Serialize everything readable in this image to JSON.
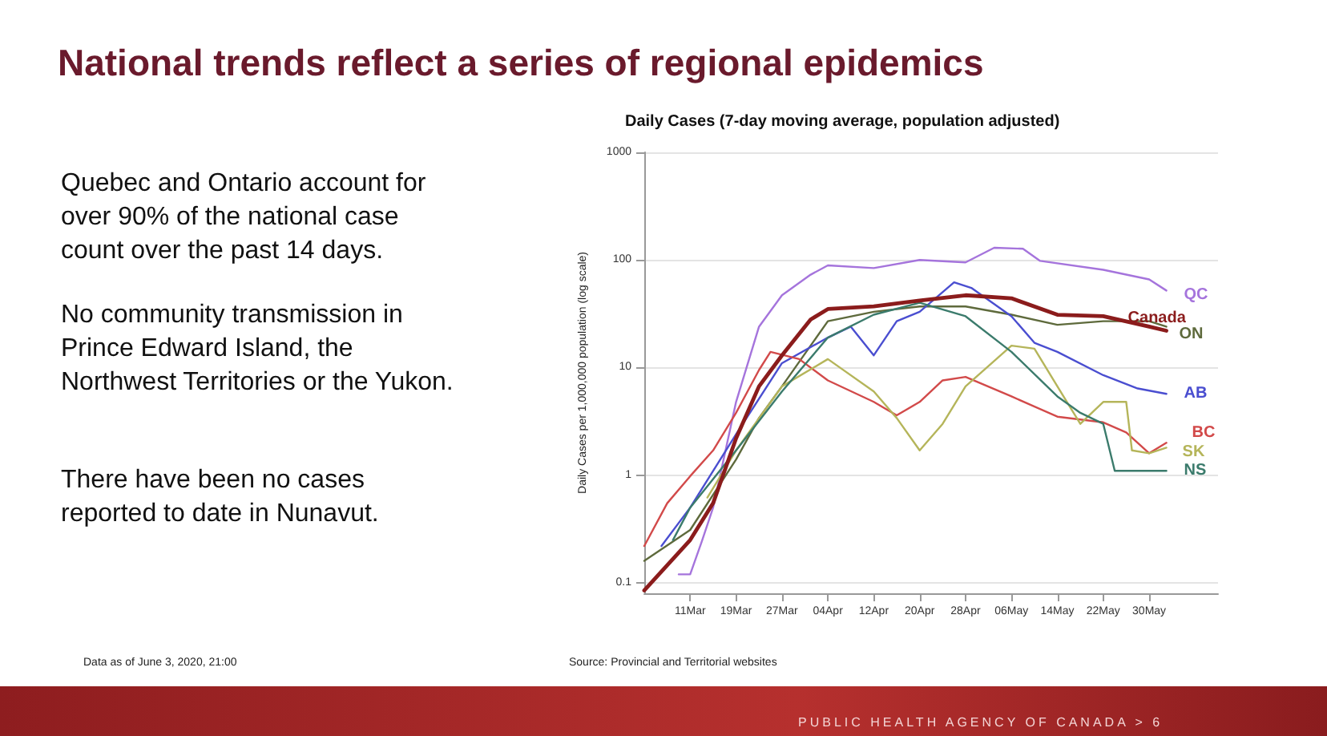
{
  "chart_data": {
    "type": "line",
    "title": "National trends reflect a series of regional epidemics",
    "subtitle": "Daily Cases (7-day moving average, population adjusted)",
    "ylabel": "Daily Cases per 1,000,000 population (log scale)",
    "annotations": [
      "Quebec and Ontario account for over 90% of the national case count over the past 14 days.",
      "No community transmission in Prince Edward Island, the Northwest Territories or the Yukon.",
      "There have been no cases reported to date in Nunavut.",
      "Data as of June 3, 2020, 21:00",
      "Source: Provincial and Territorial websites",
      "PUBLIC HEALTH AGENCY OF CANADA > 6"
    ],
    "log": "y",
    "grid": "y",
    "marker": "none",
    "line_style": "solid",
    "xlim": [
      "2020-03-03",
      "2020-06-11"
    ],
    "xticks": [
      {
        "value": "2020-03-11",
        "label": "11Mar"
      },
      {
        "value": "2020-03-19",
        "label": "19Mar"
      },
      {
        "value": "2020-03-27",
        "label": "27Mar"
      },
      {
        "value": "2020-04-04",
        "label": "04Apr"
      },
      {
        "value": "2020-04-12",
        "label": "12Apr"
      },
      {
        "value": "2020-04-20",
        "label": "20Apr"
      },
      {
        "value": "2020-04-28",
        "label": "28Apr"
      },
      {
        "value": "2020-05-06",
        "label": "06May"
      },
      {
        "value": "2020-05-14",
        "label": "14May"
      },
      {
        "value": "2020-05-22",
        "label": "22May"
      },
      {
        "value": "2020-05-30",
        "label": "30May"
      }
    ],
    "ylim": [
      0.08,
      1000
    ],
    "yticks": [
      0.1,
      1,
      10,
      100,
      1000
    ],
    "series": [
      {
        "name": "QC",
        "color": "#a574dc",
        "x": [
          "2020-03-09",
          "2020-03-11",
          "2020-03-13",
          "2020-03-15",
          "2020-03-19",
          "2020-03-23",
          "2020-03-27",
          "2020-04-01",
          "2020-04-04",
          "2020-04-12",
          "2020-04-20",
          "2020-04-28",
          "2020-05-03",
          "2020-05-08",
          "2020-05-11",
          "2020-05-22",
          "2020-05-30",
          "2020-06-02"
        ],
        "values": [
          0.12,
          0.12,
          0.24,
          0.5,
          4.8,
          24,
          47,
          73,
          89,
          84,
          100,
          95,
          130,
          127,
          98,
          81,
          66,
          52
        ]
      },
      {
        "name": "Canada",
        "color": "#8b1c1c",
        "x": [
          "2020-03-03",
          "2020-03-11",
          "2020-03-15",
          "2020-03-19",
          "2020-03-23",
          "2020-03-27",
          "2020-04-01",
          "2020-04-04",
          "2020-04-12",
          "2020-04-20",
          "2020-04-28",
          "2020-05-06",
          "2020-05-14",
          "2020-05-22",
          "2020-05-30",
          "2020-06-02"
        ],
        "values": [
          0.085,
          0.25,
          0.55,
          2.2,
          6.7,
          13,
          28,
          35,
          37,
          42,
          47,
          44,
          31,
          30,
          24,
          22
        ]
      },
      {
        "name": "ON",
        "color": "#5e6a3c",
        "x": [
          "2020-03-03",
          "2020-03-11",
          "2020-03-19",
          "2020-03-23",
          "2020-03-27",
          "2020-04-04",
          "2020-04-12",
          "2020-04-20",
          "2020-04-28",
          "2020-05-06",
          "2020-05-14",
          "2020-05-22",
          "2020-05-30",
          "2020-06-02"
        ],
        "values": [
          0.16,
          0.31,
          1.4,
          3.4,
          6.7,
          27,
          33,
          37,
          37,
          31,
          25,
          27,
          27,
          24
        ]
      },
      {
        "name": "AB",
        "color": "#4a4ed0",
        "x": [
          "2020-03-06",
          "2020-03-11",
          "2020-03-19",
          "2020-03-27",
          "2020-04-04",
          "2020-04-08",
          "2020-04-12",
          "2020-04-16",
          "2020-04-20",
          "2020-04-26",
          "2020-04-29",
          "2020-05-06",
          "2020-05-10",
          "2020-05-14",
          "2020-05-22",
          "2020-05-28",
          "2020-06-02"
        ],
        "values": [
          0.22,
          0.5,
          2.4,
          11,
          19,
          24,
          13,
          27,
          33,
          62,
          55,
          30,
          17,
          14,
          8.5,
          6.4,
          5.7
        ]
      },
      {
        "name": "BC",
        "color": "#d24a4a",
        "x": [
          "2020-03-03",
          "2020-03-07",
          "2020-03-11",
          "2020-03-15",
          "2020-03-19",
          "2020-03-23",
          "2020-03-25",
          "2020-03-30",
          "2020-04-04",
          "2020-04-12",
          "2020-04-16",
          "2020-04-20",
          "2020-04-24",
          "2020-04-28",
          "2020-05-06",
          "2020-05-14",
          "2020-05-22",
          "2020-05-26",
          "2020-05-30",
          "2020-06-02"
        ],
        "values": [
          0.22,
          0.55,
          0.98,
          1.7,
          3.8,
          9.5,
          14,
          12,
          7.6,
          4.8,
          3.6,
          4.8,
          7.6,
          8.2,
          5.4,
          3.5,
          3.1,
          2.5,
          1.6,
          2
        ]
      },
      {
        "name": "SK",
        "color": "#b5b55a",
        "x": [
          "2020-03-14",
          "2020-03-19",
          "2020-03-27",
          "2020-04-04",
          "2020-04-12",
          "2020-04-16",
          "2020-04-20",
          "2020-04-24",
          "2020-04-28",
          "2020-05-06",
          "2020-05-10",
          "2020-05-14",
          "2020-05-18",
          "2020-05-22",
          "2020-05-26",
          "2020-05-27",
          "2020-05-30",
          "2020-06-02"
        ],
        "values": [
          0.62,
          1.7,
          6.7,
          12,
          6,
          3.4,
          1.7,
          3,
          6.7,
          16,
          15,
          6.7,
          3,
          4.8,
          4.8,
          1.7,
          1.6,
          1.8
        ]
      },
      {
        "name": "NS",
        "color": "#3b7b6c",
        "x": [
          "2020-03-08",
          "2020-03-11",
          "2020-03-19",
          "2020-03-27",
          "2020-04-04",
          "2020-04-12",
          "2020-04-20",
          "2020-04-28",
          "2020-05-06",
          "2020-05-14",
          "2020-05-18",
          "2020-05-22",
          "2020-05-24",
          "2020-05-30",
          "2020-06-02"
        ],
        "values": [
          0.25,
          0.5,
          1.7,
          6,
          19,
          31,
          40,
          30,
          14,
          5.4,
          3.8,
          3,
          1.1,
          1.1,
          1.1
        ]
      }
    ]
  }
}
